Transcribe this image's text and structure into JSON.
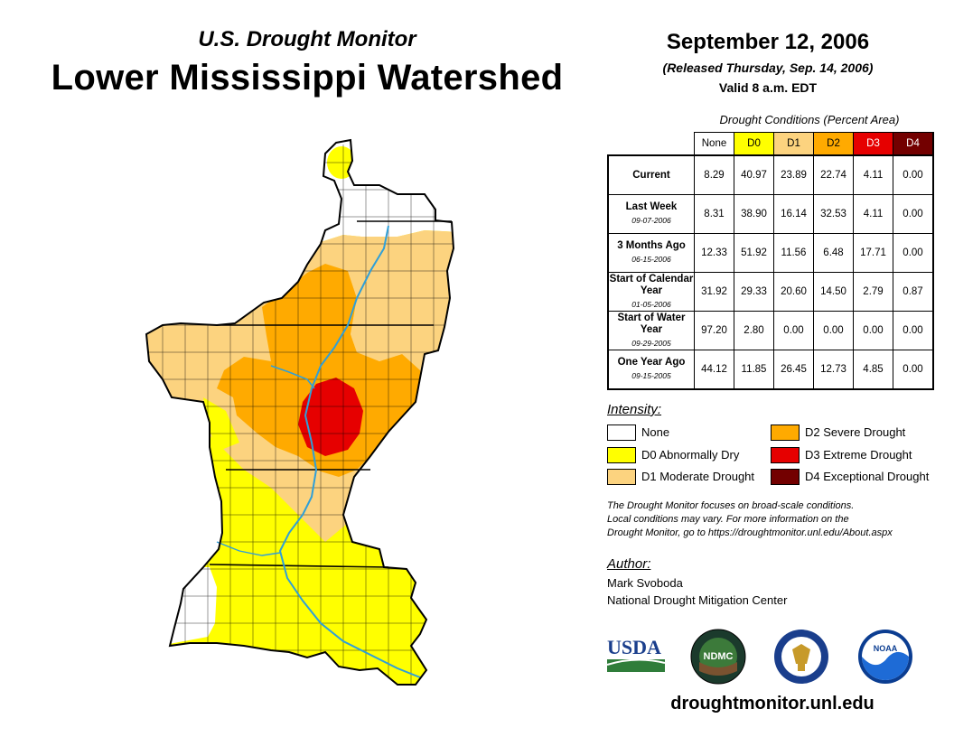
{
  "header": {
    "subtitle": "U.S. Drought Monitor",
    "title": "Lower Mississippi Watershed",
    "date": "September 12, 2006",
    "released": "(Released Thursday, Sep. 14, 2006)",
    "valid": "Valid 8 a.m. EDT"
  },
  "table": {
    "caption": "Drought Conditions (Percent Area)",
    "columns": [
      "None",
      "D0",
      "D1",
      "D2",
      "D3",
      "D4"
    ],
    "column_colors": [
      "#ffffff",
      "#ffff00",
      "#fcd37f",
      "#ffaa00",
      "#e60000",
      "#730000"
    ],
    "rows": [
      {
        "label": "Current",
        "date": "",
        "values": [
          "8.29",
          "40.97",
          "23.89",
          "22.74",
          "4.11",
          "0.00"
        ]
      },
      {
        "label": "Last Week",
        "date": "09-07-2006",
        "values": [
          "8.31",
          "38.90",
          "16.14",
          "32.53",
          "4.11",
          "0.00"
        ]
      },
      {
        "label": "3 Months Ago",
        "date": "06-15-2006",
        "values": [
          "12.33",
          "51.92",
          "11.56",
          "6.48",
          "17.71",
          "0.00"
        ]
      },
      {
        "label": "Start of Calendar Year",
        "date": "01-05-2006",
        "values": [
          "31.92",
          "29.33",
          "20.60",
          "14.50",
          "2.79",
          "0.87"
        ]
      },
      {
        "label": "Start of Water Year",
        "date": "09-29-2005",
        "values": [
          "97.20",
          "2.80",
          "0.00",
          "0.00",
          "0.00",
          "0.00"
        ]
      },
      {
        "label": "One Year Ago",
        "date": "09-15-2005",
        "values": [
          "44.12",
          "11.85",
          "26.45",
          "12.73",
          "4.85",
          "0.00"
        ]
      }
    ]
  },
  "legend": {
    "title": "Intensity:",
    "items": [
      {
        "label": "None",
        "color": "#ffffff"
      },
      {
        "label": "D0 Abnormally Dry",
        "color": "#ffff00"
      },
      {
        "label": "D1 Moderate Drought",
        "color": "#fcd37f"
      },
      {
        "label": "D2 Severe Drought",
        "color": "#ffaa00"
      },
      {
        "label": "D3 Extreme Drought",
        "color": "#e60000"
      },
      {
        "label": "D4 Exceptional Drought",
        "color": "#730000"
      }
    ]
  },
  "note": {
    "line1": "The Drought Monitor focuses on broad-scale conditions.",
    "line2": "Local conditions may vary. For more information on the",
    "line3": "Drought Monitor, go to https://droughtmonitor.unl.edu/About.aspx"
  },
  "author": {
    "title": "Author:",
    "name": "Mark Svoboda",
    "org": "National Drought Mitigation Center"
  },
  "logos": {
    "usda": "USDA",
    "ndmc": "NDMC",
    "noaa": "NOAA"
  },
  "website": "droughtmonitor.unl.edu",
  "map_colors": {
    "none": "#ffffff",
    "d0": "#ffff00",
    "d1": "#fcd37f",
    "d2": "#ffaa00",
    "d3": "#e60000",
    "river": "#2f9fd8",
    "border": "#000000"
  }
}
